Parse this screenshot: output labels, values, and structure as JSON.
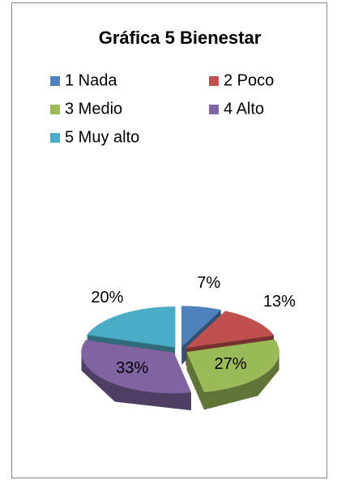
{
  "chart_data": {
    "type": "pie3d",
    "title": "Gráfica 5 Bienestar",
    "categories": [
      "1 Nada",
      "2 Poco",
      "3 Medio",
      "4 Alto",
      "5 Muy alto"
    ],
    "values": [
      7,
      13,
      27,
      33,
      20
    ],
    "value_labels": [
      "7%",
      "13%",
      "27%",
      "33%",
      "20%"
    ],
    "colors": [
      "#4f81bd",
      "#c0504d",
      "#9bbb59",
      "#8064a2",
      "#4bacc6"
    ],
    "legend": "top"
  }
}
